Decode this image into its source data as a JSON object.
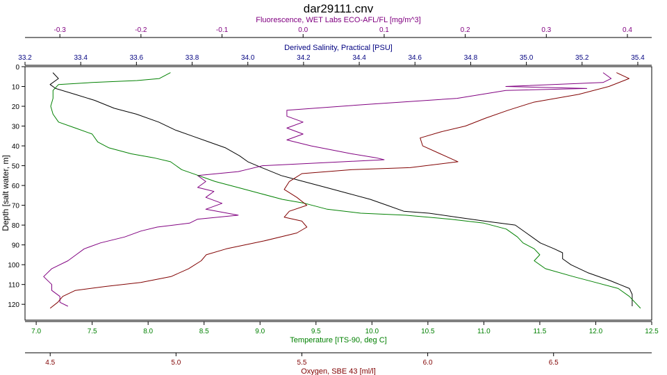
{
  "chart_data": {
    "type": "line",
    "title": "dar29111.cnv",
    "grid": false,
    "legend": "none",
    "y_axis": {
      "label": "Depth [salt water, m]",
      "range": [
        0,
        128
      ],
      "inverted": true,
      "ticks": [
        0,
        10,
        20,
        30,
        40,
        50,
        60,
        70,
        80,
        90,
        100,
        110,
        120
      ]
    },
    "x_axes": [
      {
        "id": "fluorescence",
        "label": "Fluorescence, WET Labs ECO-AFL/FL [mg/m^3]",
        "position": "top-outer",
        "color": "#800080",
        "range": [
          -0.343,
          0.43
        ],
        "ticks": [
          "-0.3",
          "-0.2",
          "-0.1",
          "0.0",
          "0.1",
          "0.2",
          "0.3",
          "0.4"
        ]
      },
      {
        "id": "salinity",
        "label": "Derived Salinity, Practical [PSU]",
        "position": "top-inner",
        "color": "#000080",
        "range": [
          33.2,
          35.45
        ],
        "ticks": [
          "33.2",
          "33.4",
          "33.6",
          "33.8",
          "34.0",
          "34.2",
          "34.4",
          "34.6",
          "34.8",
          "35.0",
          "35.2",
          "35.4"
        ]
      },
      {
        "id": "temperature",
        "label": "Temperature [ITS-90, deg C]",
        "position": "bottom-inner",
        "color": "#008000",
        "range": [
          6.9,
          12.5
        ],
        "ticks": [
          "7.0",
          "7.5",
          "8.0",
          "8.5",
          "9.0",
          "9.5",
          "10.0",
          "10.5",
          "11.0",
          "11.5",
          "12.0",
          "12.5"
        ]
      },
      {
        "id": "oxygen",
        "label": "Oxygen, SBE 43 [ml/l]",
        "position": "bottom-outer",
        "color": "#800000",
        "range": [
          4.4,
          6.89
        ],
        "ticks": [
          "4.5",
          "5.0",
          "5.5",
          "6.0",
          "6.5"
        ]
      }
    ],
    "series": [
      {
        "axis": "salinity",
        "color": "#000000",
        "points": [
          [
            33.3,
            3
          ],
          [
            33.32,
            6
          ],
          [
            33.29,
            9
          ],
          [
            33.31,
            11
          ],
          [
            33.38,
            14
          ],
          [
            33.45,
            17
          ],
          [
            33.52,
            21
          ],
          [
            33.6,
            24
          ],
          [
            33.68,
            28
          ],
          [
            33.74,
            32
          ],
          [
            33.8,
            35
          ],
          [
            33.86,
            38
          ],
          [
            33.92,
            41
          ],
          [
            33.97,
            45
          ],
          [
            34.0,
            48
          ],
          [
            34.05,
            51
          ],
          [
            34.12,
            55
          ],
          [
            34.2,
            58
          ],
          [
            34.28,
            61
          ],
          [
            34.36,
            64
          ],
          [
            34.44,
            67
          ],
          [
            34.5,
            70
          ],
          [
            34.56,
            73
          ],
          [
            34.65,
            74
          ],
          [
            34.75,
            76
          ],
          [
            34.85,
            78
          ],
          [
            34.96,
            80
          ],
          [
            35.0,
            84
          ],
          [
            35.05,
            89
          ],
          [
            35.1,
            92
          ],
          [
            35.13,
            94
          ],
          [
            35.13,
            97
          ],
          [
            35.16,
            100
          ],
          [
            35.22,
            104
          ],
          [
            35.3,
            108
          ],
          [
            35.37,
            112
          ],
          [
            35.38,
            115
          ],
          [
            35.38,
            118
          ],
          [
            35.38,
            121
          ]
        ]
      },
      {
        "axis": "fluorescence",
        "color": "#800080",
        "points": [
          [
            0.37,
            3
          ],
          [
            0.38,
            6
          ],
          [
            0.37,
            8
          ],
          [
            0.25,
            10
          ],
          [
            0.35,
            11
          ],
          [
            0.25,
            12
          ],
          [
            0.19,
            16
          ],
          [
            0.08,
            19
          ],
          [
            -0.02,
            22
          ],
          [
            -0.02,
            25
          ],
          [
            0.0,
            28
          ],
          [
            -0.02,
            31
          ],
          [
            0.0,
            34
          ],
          [
            -0.02,
            37
          ],
          [
            0.01,
            40
          ],
          [
            0.06,
            44
          ],
          [
            0.09,
            46
          ],
          [
            0.1,
            47
          ],
          [
            0.05,
            48
          ],
          [
            -0.05,
            50
          ],
          [
            -0.07,
            52
          ],
          [
            -0.08,
            53
          ],
          [
            -0.13,
            55
          ],
          [
            -0.12,
            58
          ],
          [
            -0.13,
            61
          ],
          [
            -0.11,
            63
          ],
          [
            -0.12,
            66
          ],
          [
            -0.1,
            69
          ],
          [
            -0.12,
            72
          ],
          [
            -0.08,
            75
          ],
          [
            -0.13,
            77
          ],
          [
            -0.14,
            79
          ],
          [
            -0.18,
            81
          ],
          [
            -0.2,
            83
          ],
          [
            -0.22,
            86
          ],
          [
            -0.25,
            89
          ],
          [
            -0.27,
            92
          ],
          [
            -0.28,
            95
          ],
          [
            -0.29,
            98
          ],
          [
            -0.31,
            102
          ],
          [
            -0.32,
            106
          ],
          [
            -0.31,
            110
          ],
          [
            -0.31,
            113
          ],
          [
            -0.3,
            116
          ],
          [
            -0.3,
            119
          ],
          [
            -0.29,
            121
          ]
        ]
      },
      {
        "axis": "temperature",
        "color": "#008000",
        "points": [
          [
            8.2,
            3
          ],
          [
            8.1,
            6
          ],
          [
            7.9,
            7
          ],
          [
            7.5,
            8
          ],
          [
            7.2,
            9
          ],
          [
            7.15,
            12
          ],
          [
            7.15,
            16
          ],
          [
            7.13,
            20
          ],
          [
            7.15,
            24
          ],
          [
            7.2,
            28
          ],
          [
            7.35,
            31
          ],
          [
            7.5,
            34
          ],
          [
            7.55,
            38
          ],
          [
            7.65,
            41
          ],
          [
            7.85,
            44
          ],
          [
            8.05,
            46
          ],
          [
            8.2,
            48
          ],
          [
            8.3,
            52
          ],
          [
            8.45,
            55
          ],
          [
            8.6,
            58
          ],
          [
            8.8,
            61
          ],
          [
            9.0,
            64
          ],
          [
            9.2,
            67
          ],
          [
            9.4,
            69
          ],
          [
            9.6,
            72
          ],
          [
            9.9,
            74
          ],
          [
            10.3,
            75
          ],
          [
            10.7,
            77
          ],
          [
            11.0,
            79
          ],
          [
            11.2,
            82
          ],
          [
            11.3,
            86
          ],
          [
            11.35,
            89
          ],
          [
            11.45,
            92
          ],
          [
            11.5,
            95
          ],
          [
            11.45,
            98
          ],
          [
            11.55,
            102
          ],
          [
            11.8,
            106
          ],
          [
            12.0,
            109
          ],
          [
            12.2,
            112
          ],
          [
            12.3,
            116
          ],
          [
            12.35,
            119
          ],
          [
            12.4,
            122
          ]
        ]
      },
      {
        "axis": "oxygen",
        "color": "#800000",
        "points": [
          [
            6.75,
            3
          ],
          [
            6.8,
            6
          ],
          [
            6.72,
            10
          ],
          [
            6.6,
            14
          ],
          [
            6.42,
            18
          ],
          [
            6.32,
            22
          ],
          [
            6.23,
            26
          ],
          [
            6.15,
            30
          ],
          [
            6.05,
            33
          ],
          [
            5.97,
            36
          ],
          [
            5.98,
            40
          ],
          [
            6.05,
            44
          ],
          [
            6.12,
            48
          ],
          [
            5.93,
            51
          ],
          [
            5.7,
            52
          ],
          [
            5.5,
            54
          ],
          [
            5.45,
            58
          ],
          [
            5.43,
            62
          ],
          [
            5.48,
            66
          ],
          [
            5.52,
            70
          ],
          [
            5.45,
            73
          ],
          [
            5.43,
            76
          ],
          [
            5.5,
            78
          ],
          [
            5.52,
            81
          ],
          [
            5.48,
            84
          ],
          [
            5.35,
            88
          ],
          [
            5.2,
            92
          ],
          [
            5.12,
            95
          ],
          [
            5.1,
            98
          ],
          [
            5.05,
            102
          ],
          [
            4.98,
            106
          ],
          [
            4.86,
            109
          ],
          [
            4.72,
            111
          ],
          [
            4.6,
            113
          ],
          [
            4.55,
            116
          ],
          [
            4.53,
            119
          ],
          [
            4.5,
            122
          ]
        ]
      }
    ]
  }
}
